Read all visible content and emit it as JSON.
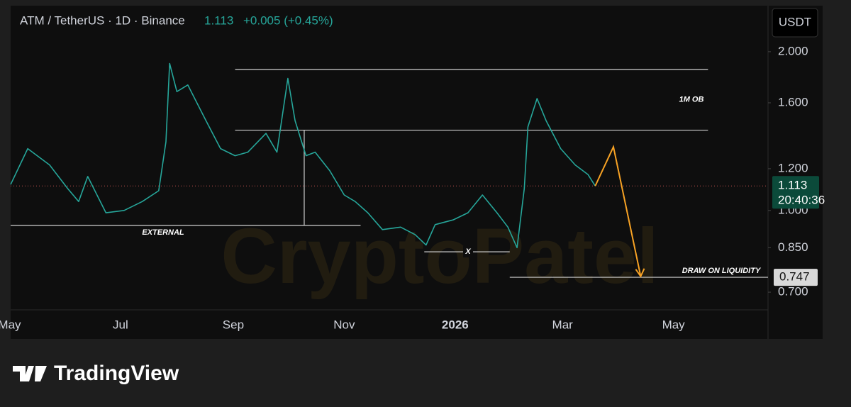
{
  "header": {
    "symbol": "ATM / TetherUS · 1D · Binance",
    "price": "1.113",
    "change": "+0.005 (+0.45%)",
    "currency": "USDT"
  },
  "watermark": "CryptoPatel",
  "brand": "TradingView",
  "chart_data": {
    "type": "line",
    "log_scale": true,
    "series": [
      {
        "name": "ATM / TetherUS",
        "color": "#26a69a",
        "x": [
          0.6,
          10,
          22,
          32,
          38,
          43,
          53,
          63,
          73,
          82,
          86,
          88,
          92,
          98,
          108,
          116,
          124,
          131,
          141,
          147,
          153,
          157,
          163,
          168,
          176,
          184,
          190,
          197,
          205,
          215,
          223,
          229,
          234,
          244,
          252,
          260,
          268,
          274,
          279,
          283,
          285,
          290,
          295,
          303,
          311,
          318,
          322
        ],
        "values": [
          1.12,
          1.31,
          1.22,
          1.1,
          1.04,
          1.16,
          0.99,
          1.0,
          1.04,
          1.09,
          1.35,
          1.9,
          1.68,
          1.73,
          1.48,
          1.31,
          1.27,
          1.29,
          1.4,
          1.29,
          1.78,
          1.48,
          1.27,
          1.29,
          1.19,
          1.07,
          1.04,
          0.99,
          0.92,
          0.93,
          0.9,
          0.86,
          0.94,
          0.96,
          0.99,
          1.07,
          0.99,
          0.93,
          0.85,
          1.1,
          1.44,
          1.63,
          1.48,
          1.31,
          1.22,
          1.17,
          1.113
        ]
      }
    ],
    "xlim": [
      0.6,
      417
    ],
    "xticks": [
      {
        "value": 0,
        "label": "May"
      },
      {
        "value": 61,
        "label": "Jul"
      },
      {
        "value": 123,
        "label": "Sep"
      },
      {
        "value": 184,
        "label": "Nov"
      },
      {
        "value": 245,
        "label": "2026"
      },
      {
        "value": 304,
        "label": "Mar"
      },
      {
        "value": 365,
        "label": "May"
      }
    ],
    "ylim": [
      0.648,
      2.445
    ],
    "yticks": [
      {
        "value": 0.7,
        "label": "0.700"
      },
      {
        "value": 0.85,
        "label": "0.850"
      },
      {
        "value": 1,
        "label": "1.000"
      },
      {
        "value": 1.2,
        "label": "1.200"
      },
      {
        "value": 1.6,
        "label": "1.600"
      },
      {
        "value": 2,
        "label": "2.000"
      }
    ],
    "last_price": {
      "value": 1.113,
      "label": "1.113",
      "countdown": "20:40:36"
    },
    "levels": [
      {
        "name": "1M OB",
        "value": 1.85,
        "x": [
          124,
          384
        ]
      },
      {
        "value": 1.42,
        "x": [
          124,
          384
        ]
      },
      {
        "name": "EXTERNAL",
        "value": 0.937,
        "x": [
          0.6,
          193
        ]
      },
      {
        "name": "X",
        "value": 0.835,
        "x": [
          228,
          275
        ]
      },
      {
        "name": "DRAW ON LIQUIDITY",
        "value": 0.747,
        "label": "0.747",
        "x": [
          275,
          417
        ]
      }
    ],
    "vertical": {
      "x": 162,
      "values": [
        0.937,
        1.42
      ]
    },
    "projection": {
      "color": "#f7a224",
      "x": [
        322,
        332,
        347
      ],
      "values": [
        1.113,
        1.32,
        0.75
      ]
    }
  }
}
